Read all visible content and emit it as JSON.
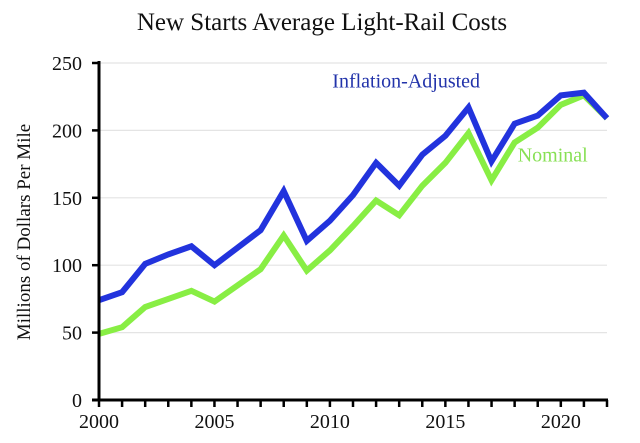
{
  "chart_data": {
    "type": "line",
    "title": "New Starts Average Light-Rail Costs",
    "xlabel": "",
    "ylabel": "Millions of Dollars Per Mile",
    "xlim": [
      2000,
      2022
    ],
    "ylim": [
      0,
      250
    ],
    "grid": true,
    "yticks": [
      0,
      50,
      100,
      150,
      200,
      250
    ],
    "xticks": [
      2000,
      2005,
      2010,
      2015,
      2020
    ],
    "x": [
      2000,
      2001,
      2002,
      2003,
      2004,
      2005,
      2006,
      2007,
      2008,
      2009,
      2010,
      2011,
      2012,
      2013,
      2014,
      2015,
      2016,
      2017,
      2018,
      2019,
      2020,
      2021,
      2022
    ],
    "series": [
      {
        "name": "Inflation-Adjusted",
        "color": "#2233dd",
        "values": [
          74,
          80,
          101,
          108,
          114,
          100,
          113,
          126,
          155,
          118,
          133,
          152,
          176,
          159,
          182,
          196,
          217,
          177,
          205,
          211,
          226,
          228,
          209
        ]
      },
      {
        "name": "Nominal",
        "color": "#88ee44",
        "values": [
          49,
          54,
          69,
          75,
          81,
          73,
          85,
          97,
          122,
          96,
          111,
          129,
          148,
          137,
          159,
          176,
          198,
          163,
          191,
          202,
          219,
          226,
          209
        ]
      }
    ],
    "annotations": [
      {
        "text": "Inflation-Adjusted",
        "series": "Inflation-Adjusted",
        "near_x": 2013,
        "near_y": 237
      },
      {
        "text": "Nominal",
        "series": "Nominal",
        "near_x": 2019,
        "near_y": 182
      }
    ]
  }
}
